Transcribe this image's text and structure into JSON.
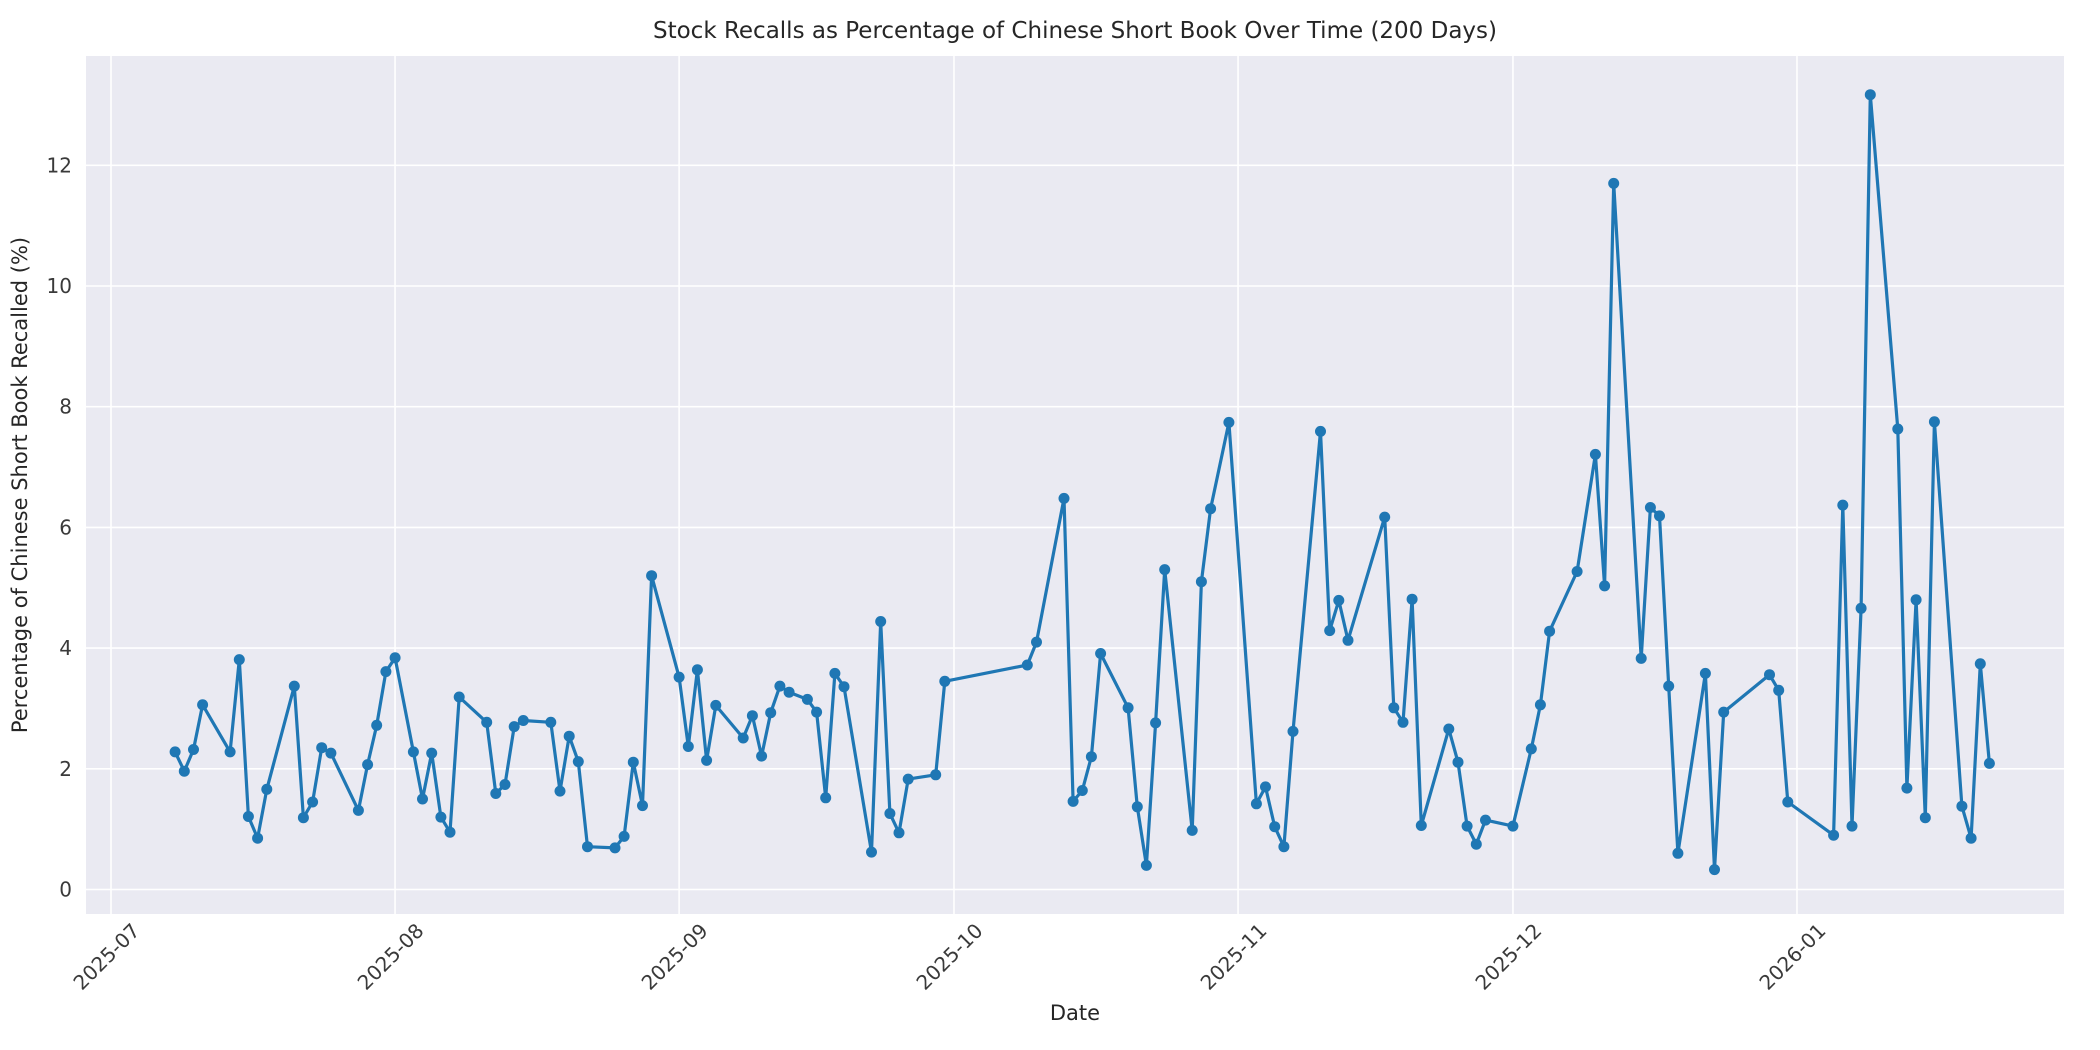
{
  "figure": {
    "title": "Stock Recalls as Percentage of Chinese Short Book Over Time (200 Days)",
    "xlabel": "Date",
    "ylabel": "Percentage of Chinese Short Book Recalled (%)"
  },
  "chart_data": {
    "type": "line",
    "title": "Stock Recalls as Percentage of Chinese Short Book Over Time (200 Days)",
    "xlabel": "Date",
    "ylabel": "Percentage of Chinese Short Book Recalled (%)",
    "legend_position": "none",
    "grid": true,
    "style": "seaborn-darkgrid",
    "line_color": "#1f77b4",
    "marker": "circle",
    "plot_bg_color": "#eaeaf2",
    "grid_color": "#ffffff",
    "x_tick_labels": [
      "2025-07",
      "2025-08",
      "2025-09",
      "2025-10",
      "2025-11",
      "2025-12",
      "2026-01"
    ],
    "y_ticks": [
      0,
      2,
      4,
      6,
      8,
      10,
      12
    ],
    "ylim": [
      -0.4,
      13.8
    ],
    "x_start_date": "2025-07-01",
    "series": [
      {
        "name": "recall_percentage",
        "dates": [
          "2025-07-08",
          "2025-07-09",
          "2025-07-10",
          "2025-07-11",
          "2025-07-14",
          "2025-07-15",
          "2025-07-16",
          "2025-07-17",
          "2025-07-18",
          "2025-07-21",
          "2025-07-22",
          "2025-07-23",
          "2025-07-24",
          "2025-07-25",
          "2025-07-28",
          "2025-07-29",
          "2025-07-30",
          "2025-07-31",
          "2025-08-01",
          "2025-08-03",
          "2025-08-04",
          "2025-08-05",
          "2025-08-06",
          "2025-08-07",
          "2025-08-08",
          "2025-08-11",
          "2025-08-12",
          "2025-08-13",
          "2025-08-14",
          "2025-08-15",
          "2025-08-18",
          "2025-08-19",
          "2025-08-20",
          "2025-08-21",
          "2025-08-22",
          "2025-08-25",
          "2025-08-26",
          "2025-08-27",
          "2025-08-28",
          "2025-08-29",
          "2025-09-01",
          "2025-09-02",
          "2025-09-03",
          "2025-09-04",
          "2025-09-05",
          "2025-09-08",
          "2025-09-09",
          "2025-09-10",
          "2025-09-11",
          "2025-09-12",
          "2025-09-13",
          "2025-09-15",
          "2025-09-16",
          "2025-09-17",
          "2025-09-18",
          "2025-09-19",
          "2025-09-22",
          "2025-09-23",
          "2025-09-24",
          "2025-09-25",
          "2025-09-26",
          "2025-09-29",
          "2025-09-30",
          "2025-10-09",
          "2025-10-10",
          "2025-10-13",
          "2025-10-14",
          "2025-10-15",
          "2025-10-16",
          "2025-10-17",
          "2025-10-20",
          "2025-10-21",
          "2025-10-22",
          "2025-10-23",
          "2025-10-24",
          "2025-10-27",
          "2025-10-28",
          "2025-10-29",
          "2025-10-31",
          "2025-11-03",
          "2025-11-04",
          "2025-11-05",
          "2025-11-06",
          "2025-11-07",
          "2025-11-10",
          "2025-11-11",
          "2025-11-12",
          "2025-11-13",
          "2025-11-17",
          "2025-11-18",
          "2025-11-19",
          "2025-11-20",
          "2025-11-21",
          "2025-11-24",
          "2025-11-25",
          "2025-11-26",
          "2025-11-27",
          "2025-11-28",
          "2025-12-01",
          "2025-12-03",
          "2025-12-04",
          "2025-12-05",
          "2025-12-08",
          "2025-12-10",
          "2025-12-11",
          "2025-12-12",
          "2025-12-15",
          "2025-12-16",
          "2025-12-17",
          "2025-12-18",
          "2025-12-19",
          "2025-12-22",
          "2025-12-23",
          "2025-12-24",
          "2025-12-29",
          "2025-12-30",
          "2025-12-31",
          "2026-01-05",
          "2026-01-06",
          "2026-01-07",
          "2026-01-08",
          "2026-01-09",
          "2026-01-12",
          "2026-01-13",
          "2026-01-14",
          "2026-01-15",
          "2026-01-16",
          "2026-01-19",
          "2026-01-20",
          "2026-01-21",
          "2026-01-22"
        ],
        "values": [
          2.28,
          1.96,
          2.32,
          3.06,
          2.28,
          3.81,
          1.21,
          0.85,
          1.66,
          3.37,
          1.19,
          1.45,
          2.35,
          2.26,
          1.31,
          2.07,
          2.72,
          3.61,
          3.84,
          2.28,
          1.5,
          2.26,
          1.2,
          0.95,
          3.19,
          2.77,
          1.59,
          1.74,
          2.7,
          2.8,
          2.77,
          1.63,
          2.54,
          2.12,
          0.71,
          0.69,
          0.88,
          2.11,
          1.39,
          5.2,
          3.52,
          2.37,
          3.64,
          2.14,
          3.05,
          2.51,
          2.88,
          2.21,
          2.93,
          3.37,
          3.27,
          3.15,
          2.94,
          1.52,
          3.58,
          3.36,
          0.62,
          4.44,
          1.26,
          0.94,
          1.83,
          1.9,
          3.45,
          3.72,
          4.1,
          6.48,
          1.46,
          1.64,
          2.2,
          3.91,
          3.01,
          1.37,
          0.4,
          2.76,
          5.3,
          0.98,
          5.1,
          6.31,
          7.74,
          1.42,
          1.7,
          1.04,
          0.71,
          2.62,
          7.59,
          4.29,
          4.79,
          4.13,
          6.17,
          3.01,
          2.77,
          4.81,
          1.06,
          2.66,
          2.11,
          1.05,
          0.75,
          1.15,
          1.05,
          2.33,
          3.06,
          4.28,
          5.27,
          7.21,
          5.03,
          11.7,
          3.83,
          6.33,
          6.19,
          3.37,
          0.6,
          3.58,
          0.33,
          2.94,
          3.56,
          3.3,
          1.45,
          0.9,
          6.37,
          1.05,
          4.66,
          13.17,
          7.63,
          1.68,
          4.8,
          1.19,
          7.75,
          1.38,
          0.85,
          3.74,
          2.09
        ]
      }
    ]
  }
}
